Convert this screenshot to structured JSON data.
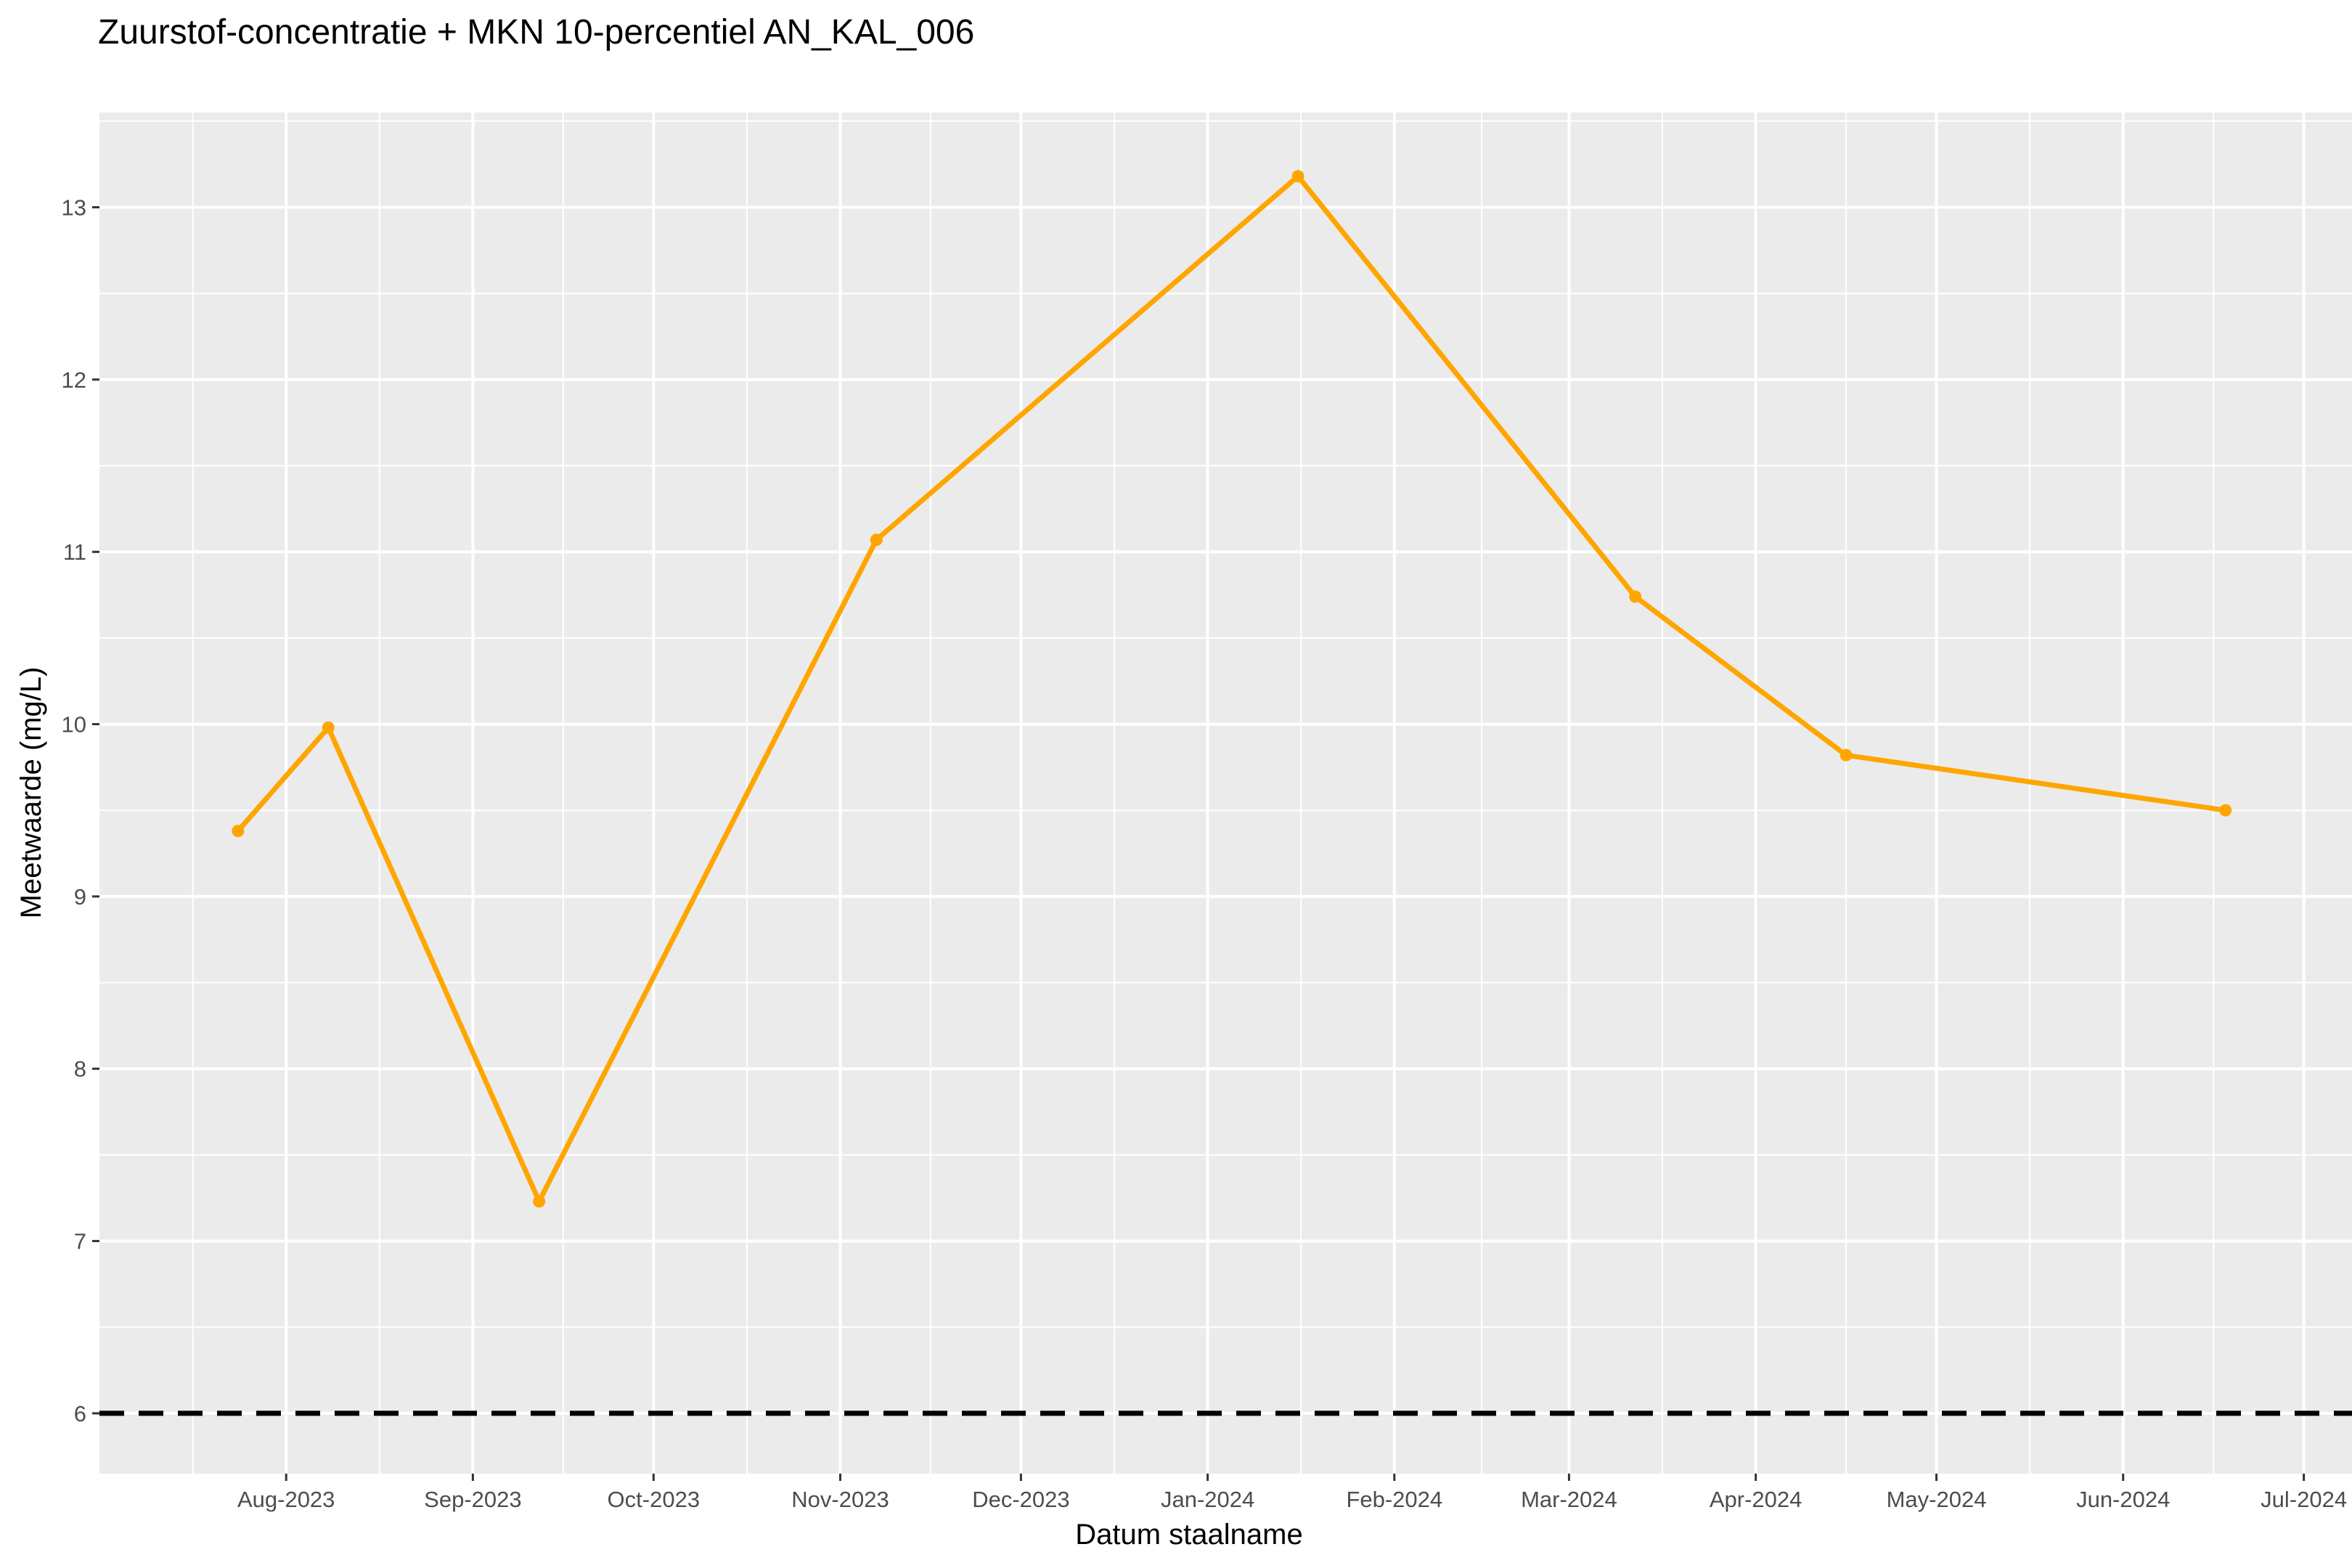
{
  "chart_data": {
    "type": "line",
    "title": "Zuurstof-concentratie + MKN 10-percentiel AN_KAL_006",
    "xlabel": "Datum staalname",
    "ylabel": "Meetwaarde (mg/L)",
    "x_type": "date",
    "xlim": [
      "2023-07-01",
      "2024-07-09"
    ],
    "ylim": [
      5.65,
      13.55
    ],
    "x_ticks": [
      {
        "date": "2023-08-01",
        "label": "Aug-2023"
      },
      {
        "date": "2023-09-01",
        "label": "Sep-2023"
      },
      {
        "date": "2023-10-01",
        "label": "Oct-2023"
      },
      {
        "date": "2023-11-01",
        "label": "Nov-2023"
      },
      {
        "date": "2023-12-01",
        "label": "Dec-2023"
      },
      {
        "date": "2024-01-01",
        "label": "Jan-2024"
      },
      {
        "date": "2024-02-01",
        "label": "Feb-2024"
      },
      {
        "date": "2024-03-01",
        "label": "Mar-2024"
      },
      {
        "date": "2024-04-01",
        "label": "Apr-2024"
      },
      {
        "date": "2024-05-01",
        "label": "May-2024"
      },
      {
        "date": "2024-06-01",
        "label": "Jun-2024"
      },
      {
        "date": "2024-07-01",
        "label": "Jul-2024"
      }
    ],
    "y_ticks": [
      6,
      7,
      8,
      9,
      10,
      11,
      12,
      13
    ],
    "grid": true,
    "series": [
      {
        "name": "",
        "color": "#FFA500",
        "x": [
          "2023-07-24",
          "2023-08-08",
          "2023-09-12",
          "2023-11-07",
          "2024-01-16",
          "2024-03-12",
          "2024-04-16",
          "2024-06-18"
        ],
        "y": [
          9.38,
          9.98,
          7.23,
          11.07,
          13.18,
          10.74,
          9.82,
          9.5
        ]
      }
    ],
    "reference_lines": [
      {
        "y": 6,
        "style": "dashed",
        "color": "#000000",
        "label": ""
      }
    ]
  }
}
